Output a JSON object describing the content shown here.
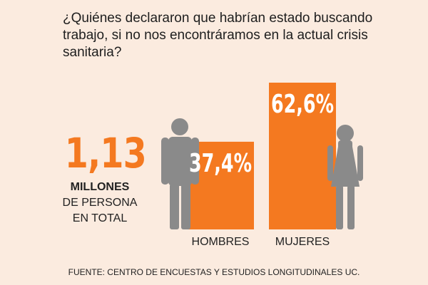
{
  "question": "¿Quiénes declararon que habrían estado buscando trabajo, si no nos encontráramos en la actual crisis sanitaria?",
  "total": {
    "number": "1,13",
    "unit": "MILLONES",
    "desc_line1": "DE PERSONA",
    "desc_line2": "EN TOTAL"
  },
  "colors": {
    "bar": "#f47920",
    "figure": "#8a8a8a",
    "background": "#fbebdf"
  },
  "icons": [
    "man-figure-icon",
    "woman-figure-icon"
  ],
  "chart_data": {
    "type": "bar",
    "categories": [
      "HOMBRES",
      "MUJERES"
    ],
    "values": [
      37.4,
      62.6
    ],
    "value_labels": [
      "37,4%",
      "62,6%"
    ],
    "ylim": [
      0,
      62.6
    ],
    "grid": false,
    "title": "",
    "xlabel": "",
    "ylabel": ""
  },
  "source": "FUENTE: CENTRO DE ENCUESTAS Y ESTUDIOS LONGITUDINALES UC."
}
